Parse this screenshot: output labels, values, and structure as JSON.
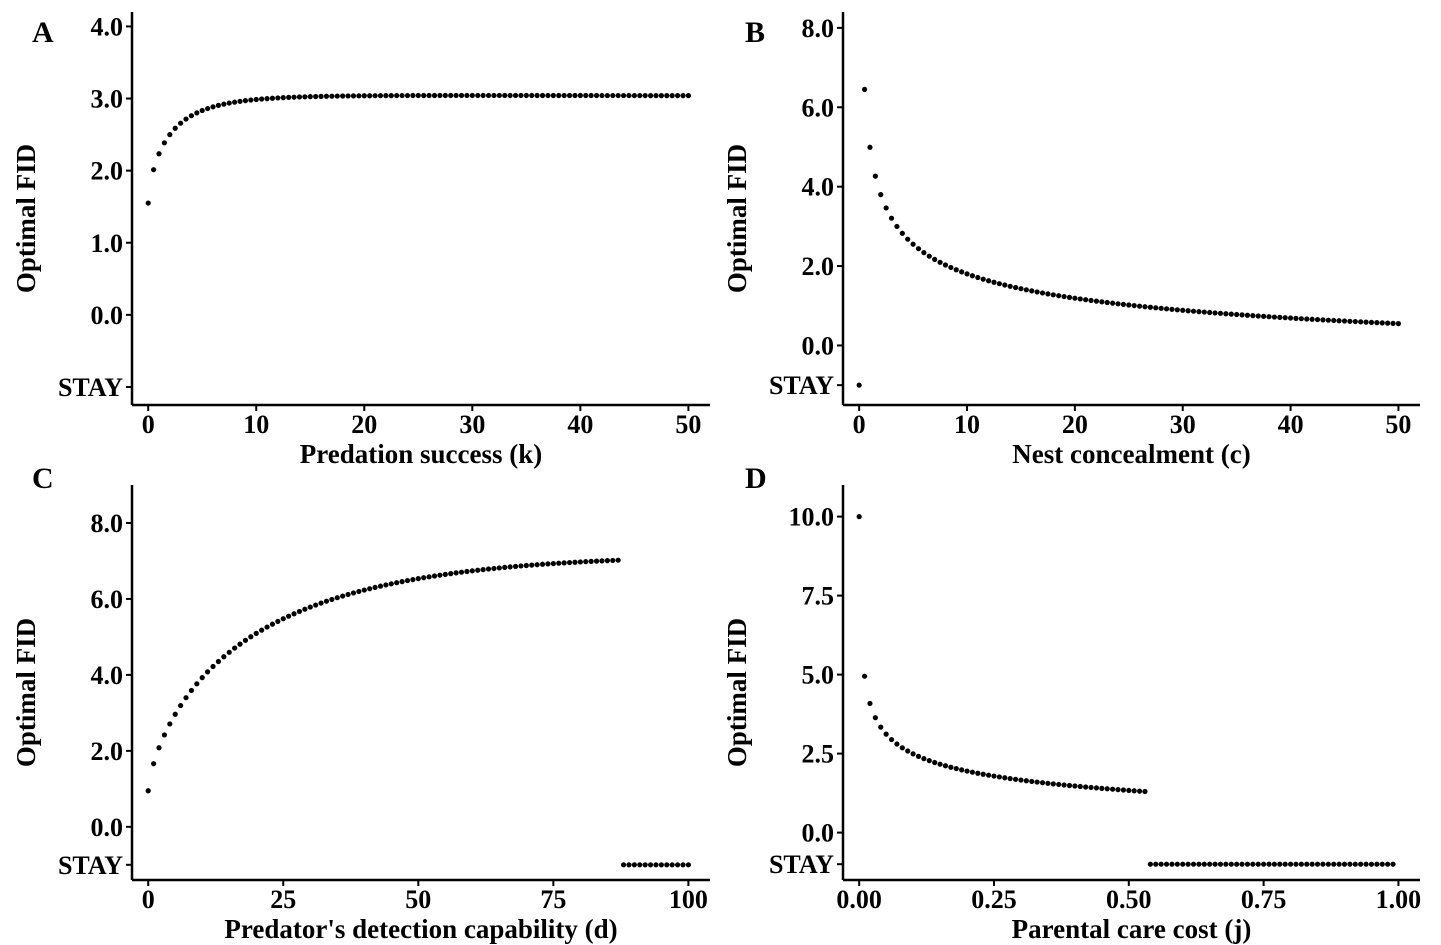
{
  "chart_data": [
    {
      "panel": "A",
      "type": "scatter",
      "xlabel": "Predation success (k)",
      "ylabel": "Optimal FID",
      "xlim": [
        -1.5,
        52
      ],
      "x_ticks": [
        0,
        10,
        20,
        30,
        40,
        50
      ],
      "x_tick_labels": [
        "0",
        "10",
        "20",
        "30",
        "40",
        "50"
      ],
      "y_ticks": [
        "STAY",
        0,
        1,
        2,
        3,
        4
      ],
      "y_tick_labels": [
        "STAY",
        "0.0",
        "1.0",
        "2.0",
        "3.0",
        "4.0"
      ],
      "stay_offset": 1.0,
      "ylim": [
        -1.25,
        4.2
      ],
      "series": [
        {
          "segments": [
            {
              "x_start": 0,
              "x_end": 50,
              "n": 101,
              "model": "saturating",
              "y_start": 1.55,
              "y_end": 3.04,
              "y_inf": 3.05,
              "shape": 0.72,
              "ref_x": 2,
              "ref_y": 2.5
            }
          ],
          "stay_range": null
        }
      ]
    },
    {
      "panel": "B",
      "type": "scatter",
      "xlabel": "Nest concealment (c)",
      "ylabel": "Optimal FID",
      "xlim": [
        -1.5,
        52
      ],
      "x_ticks": [
        0,
        10,
        20,
        30,
        40,
        50
      ],
      "x_tick_labels": [
        "0",
        "10",
        "20",
        "30",
        "40",
        "50"
      ],
      "y_ticks": [
        "STAY",
        0,
        2,
        4,
        6,
        8
      ],
      "y_tick_labels": [
        "STAY",
        "0.0",
        "2.0",
        "4.0",
        "6.0",
        "8.0"
      ],
      "stay_offset": 1.0,
      "ylim": [
        -1.5,
        8.4
      ],
      "series": [
        {
          "segments": [
            {
              "x_start": 0.5,
              "x_end": 50,
              "n": 100,
              "model": "power",
              "y_start": 6.45,
              "y_end": 0.55,
              "ref_x": 10,
              "ref_y": 1.8
            }
          ],
          "stay_points": [
            0
          ]
        }
      ]
    },
    {
      "panel": "C",
      "type": "scatter",
      "xlabel": "Predator's detection capability (d)",
      "ylabel": "Optimal FID",
      "xlim": [
        -3,
        104
      ],
      "x_ticks": [
        0,
        25,
        50,
        75,
        100
      ],
      "x_tick_labels": [
        "0",
        "25",
        "50",
        "75",
        "100"
      ],
      "y_ticks": [
        "STAY",
        0,
        2,
        4,
        6,
        8
      ],
      "y_tick_labels": [
        "STAY",
        "0.0",
        "2.0",
        "4.0",
        "6.0",
        "8.0"
      ],
      "stay_offset": 1.0,
      "ylim": [
        -1.4,
        9.0
      ],
      "series": [
        {
          "segments": [
            {
              "x_start": 0,
              "x_end": 87,
              "n": 88,
              "model": "saturating",
              "y_start": 0.95,
              "y_end": 7.02,
              "y_inf": 7.9,
              "shape": 0.72,
              "ref_x": 25,
              "ref_y": 5.6
            }
          ],
          "stay_range": [
            88,
            100,
            13
          ]
        }
      ]
    },
    {
      "panel": "D",
      "type": "scatter",
      "xlabel": "Parental care cost (j)",
      "ylabel": "Optimal FID",
      "xlim": [
        -0.03,
        1.04
      ],
      "x_ticks": [
        0,
        0.25,
        0.5,
        0.75,
        1.0
      ],
      "x_tick_labels": [
        "0.00",
        "0.25",
        "0.50",
        "0.75",
        "1.00"
      ],
      "y_ticks": [
        "STAY",
        0,
        2.5,
        5,
        7.5,
        10
      ],
      "y_tick_labels": [
        "STAY",
        "0.0",
        "2.5",
        "5.0",
        "7.5",
        "10.0"
      ],
      "stay_offset": 1.0,
      "ylim": [
        -1.5,
        11.0
      ],
      "series": [
        {
          "segments": [
            {
              "x_start": 0.0,
              "x_end": 0.0,
              "n": 1,
              "model": "point",
              "y_start": 10.0,
              "y_end": 10.0
            },
            {
              "x_start": 0.01,
              "x_end": 0.53,
              "n": 53,
              "model": "power",
              "y_start": 4.95,
              "y_end": 1.3,
              "ref_x": 0.25,
              "ref_y": 1.9
            }
          ],
          "stay_range": [
            0.54,
            0.99,
            46
          ]
        }
      ]
    }
  ]
}
